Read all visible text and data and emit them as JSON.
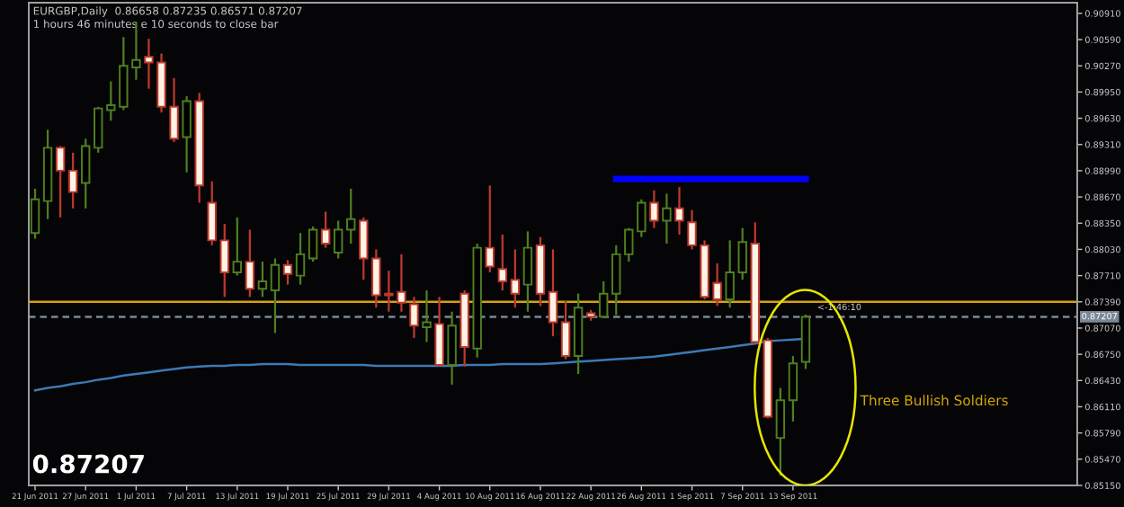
{
  "chart_data": {
    "type": "candlestick",
    "title": "EURGBP,Daily  0.86658 0.87235 0.86571 0.87207",
    "subtitle": "1 hours 46 minutes e 10 seconds to close bar",
    "categories": [
      "21 Jun 2011",
      null,
      null,
      null,
      "27 Jun 2011",
      null,
      null,
      null,
      "1 Jul 2011",
      null,
      null,
      null,
      "7 Jul 2011",
      null,
      null,
      null,
      "13 Jul 2011",
      null,
      null,
      null,
      "19 Jul 2011",
      null,
      null,
      null,
      "25 Jul 2011",
      null,
      null,
      null,
      "29 Jul 2011",
      null,
      null,
      null,
      "4 Aug 2011",
      null,
      null,
      null,
      "10 Aug 2011",
      null,
      null,
      null,
      "16 Aug 2011",
      null,
      null,
      null,
      "22 Aug 2011",
      null,
      null,
      null,
      "26 Aug 2011",
      null,
      null,
      null,
      "1 Sep 2011",
      null,
      null,
      null,
      "7 Sep 2011",
      null,
      null,
      null,
      "13 Sep 2011",
      null,
      null,
      null,
      null,
      null,
      null,
      null,
      null,
      null,
      null,
      null,
      null,
      null,
      null,
      null,
      null,
      null,
      null,
      null,
      null,
      null,
      null
    ],
    "ohlc": [
      [
        0.8823,
        0.8877,
        0.8816,
        0.8864
      ],
      [
        0.8862,
        0.8949,
        0.884,
        0.8927
      ],
      [
        0.8927,
        0.8929,
        0.8842,
        0.8899
      ],
      [
        0.8899,
        0.8921,
        0.8853,
        0.8873
      ],
      [
        0.8884,
        0.8938,
        0.8853,
        0.8929
      ],
      [
        0.8927,
        0.8977,
        0.8921,
        0.8975
      ],
      [
        0.8973,
        0.9008,
        0.896,
        0.8979
      ],
      [
        0.8977,
        0.9062,
        0.8973,
        0.9027
      ],
      [
        0.9025,
        0.9081,
        0.901,
        0.9034
      ],
      [
        0.9038,
        0.906,
        0.8999,
        0.9031
      ],
      [
        0.9031,
        0.9042,
        0.897,
        0.8977
      ],
      [
        0.8977,
        0.9012,
        0.8934,
        0.8938
      ],
      [
        0.894,
        0.899,
        0.8897,
        0.8984
      ],
      [
        0.8984,
        0.8994,
        0.886,
        0.8881
      ],
      [
        0.886,
        0.8886,
        0.8808,
        0.8814
      ],
      [
        0.8814,
        0.8834,
        0.8745,
        0.8775
      ],
      [
        0.8775,
        0.8842,
        0.8771,
        0.8788
      ],
      [
        0.8788,
        0.8827,
        0.8745,
        0.8755
      ],
      [
        0.8755,
        0.8788,
        0.8745,
        0.8764
      ],
      [
        0.8753,
        0.8792,
        0.8701,
        0.8784
      ],
      [
        0.8784,
        0.879,
        0.876,
        0.8773
      ],
      [
        0.8771,
        0.8823,
        0.876,
        0.8797
      ],
      [
        0.8792,
        0.8831,
        0.8788,
        0.8827
      ],
      [
        0.8827,
        0.8849,
        0.8805,
        0.881
      ],
      [
        0.8799,
        0.8838,
        0.8792,
        0.8827
      ],
      [
        0.8827,
        0.8877,
        0.881,
        0.884
      ],
      [
        0.8838,
        0.8842,
        0.8766,
        0.8792
      ],
      [
        0.8792,
        0.8803,
        0.8732,
        0.8747
      ],
      [
        0.8749,
        0.8777,
        0.8727,
        0.8747
      ],
      [
        0.8751,
        0.8797,
        0.8727,
        0.8738
      ],
      [
        0.8736,
        0.8745,
        0.8695,
        0.871
      ],
      [
        0.8708,
        0.8753,
        0.869,
        0.8714
      ],
      [
        0.8712,
        0.8745,
        0.866,
        0.8662
      ],
      [
        0.8662,
        0.8727,
        0.8638,
        0.871
      ],
      [
        0.8749,
        0.8753,
        0.866,
        0.8684
      ],
      [
        0.8682,
        0.881,
        0.8671,
        0.8805
      ],
      [
        0.8805,
        0.8881,
        0.8775,
        0.8782
      ],
      [
        0.8779,
        0.8821,
        0.8753,
        0.8764
      ],
      [
        0.8766,
        0.8803,
        0.8732,
        0.8749
      ],
      [
        0.876,
        0.8825,
        0.8727,
        0.8805
      ],
      [
        0.8808,
        0.8818,
        0.8734,
        0.8749
      ],
      [
        0.8751,
        0.8803,
        0.8697,
        0.8714
      ],
      [
        0.8714,
        0.874,
        0.8669,
        0.8673
      ],
      [
        0.8673,
        0.8749,
        0.8651,
        0.8732
      ],
      [
        0.8725,
        0.8729,
        0.8716,
        0.8721
      ],
      [
        0.8721,
        0.8764,
        0.8721,
        0.8749
      ],
      [
        0.8749,
        0.8808,
        0.8723,
        0.8797
      ],
      [
        0.8797,
        0.8829,
        0.8788,
        0.8827
      ],
      [
        0.8825,
        0.8864,
        0.8818,
        0.886
      ],
      [
        0.886,
        0.8875,
        0.8829,
        0.8838
      ],
      [
        0.8838,
        0.8871,
        0.881,
        0.8853
      ],
      [
        0.8853,
        0.8879,
        0.8821,
        0.8838
      ],
      [
        0.8836,
        0.8851,
        0.8803,
        0.8808
      ],
      [
        0.8808,
        0.8814,
        0.8742,
        0.8745
      ],
      [
        0.8762,
        0.8786,
        0.8734,
        0.8742
      ],
      [
        0.8742,
        0.8814,
        0.8732,
        0.8775
      ],
      [
        0.8775,
        0.8829,
        0.8766,
        0.8812
      ],
      [
        0.881,
        0.8836,
        0.8688,
        0.869
      ],
      [
        0.8692,
        0.8695,
        0.8597,
        0.8599
      ],
      [
        0.8573,
        0.8634,
        0.8527,
        0.8619
      ],
      [
        0.8619,
        0.8673,
        0.8593,
        0.8664
      ],
      [
        0.86658,
        0.87235,
        0.86571,
        0.87207
      ],
      null,
      null,
      null,
      null,
      null,
      null,
      null,
      null,
      null,
      null,
      null,
      null,
      null,
      null,
      null,
      null,
      null,
      null,
      null,
      null,
      null
    ],
    "colors": [
      "#4f7f1f",
      "#4f7f1f",
      "#fff3e6",
      "#fff3e6",
      "#4f7f1f",
      "#4f7f1f",
      "#4f7f1f",
      "#4f7f1f",
      "#4f7f1f",
      "#fff3e6",
      "#fff3e6",
      "#fff3e6",
      "#4f7f1f",
      "#fff3e6",
      "#fff3e6",
      "#fff3e6",
      "#4f7f1f",
      "#fff3e6",
      "#4f7f1f",
      "#4f7f1f",
      "#fff3e6",
      "#4f7f1f",
      "#4f7f1f",
      "#fff3e6",
      "#4f7f1f",
      "#4f7f1f",
      "#fff3e6",
      "#fff3e6",
      "#fff3e6",
      "#fff3e6",
      "#fff3e6",
      "#4f7f1f",
      "#fff3e6",
      "#4f7f1f",
      "#fff3e6",
      "#4f7f1f",
      "#fff3e6",
      "#fff3e6",
      "#fff3e6",
      "#4f7f1f",
      "#fff3e6",
      "#fff3e6",
      "#fff3e6",
      "#4f7f1f",
      "#fff3e6",
      "#4f7f1f",
      "#4f7f1f",
      "#4f7f1f",
      "#4f7f1f",
      "#fff3e6",
      "#4f7f1f",
      "#fff3e6",
      "#fff3e6",
      "#fff3e6",
      "#fff3e6",
      "#4f7f1f",
      "#4f7f1f",
      "#fff3e6",
      "#fff3e6",
      "#4f7f1f",
      "#4f7f1f",
      "#4f7f1f",
      null,
      null,
      null,
      null,
      null,
      null,
      null,
      null,
      null,
      null,
      null,
      null,
      null,
      null,
      null,
      null,
      null,
      null,
      null,
      null,
      null
    ],
    "series": [
      {
        "type": "line",
        "color": "#3c7ab5",
        "values": [
          0.8631,
          0.8634,
          0.8636,
          0.8639,
          0.8641,
          0.8644,
          0.8646,
          0.8649,
          0.8651,
          0.8653,
          0.8655,
          0.8657,
          0.8659,
          0.866,
          0.8661,
          0.8661,
          0.8662,
          0.8662,
          0.8663,
          0.8663,
          0.8663,
          0.8662,
          0.8662,
          0.8662,
          0.8662,
          0.8662,
          0.8662,
          0.8661,
          0.8661,
          0.8661,
          0.8661,
          0.8661,
          0.8661,
          0.8661,
          0.8662,
          0.8662,
          0.8662,
          0.8663,
          0.8663,
          0.8663,
          0.8663,
          0.8664,
          0.8665,
          0.8666,
          0.8667,
          0.8668,
          0.8669,
          0.867,
          0.8671,
          0.8672,
          0.8674,
          0.8676,
          0.8678,
          0.868,
          0.8682,
          0.8684,
          0.8686,
          0.8688,
          0.8691,
          0.8692,
          0.8693,
          0.8694,
          null,
          null,
          null,
          null,
          null,
          null,
          null,
          null,
          null,
          null,
          null,
          null,
          null,
          null,
          null,
          null,
          null,
          null,
          null,
          null,
          null
        ]
      },
      {
        "type": "line",
        "color": "#0000ff",
        "values": [
          null,
          null,
          null,
          null,
          null,
          null,
          null,
          null,
          null,
          null,
          null,
          null,
          null,
          null,
          null,
          null,
          null,
          null,
          null,
          null,
          null,
          null,
          null,
          null,
          null,
          null,
          null,
          null,
          null,
          null,
          null,
          null,
          null,
          null,
          null,
          null,
          null,
          null,
          null,
          null,
          null,
          null,
          null,
          null,
          null,
          null,
          0.8889,
          0.8889,
          0.8889,
          0.8889,
          0.8889,
          0.8889,
          0.8889,
          0.8889,
          0.8889,
          0.8889,
          0.8889,
          0.8889,
          0.8889,
          0.8889,
          0.8889,
          0.8889,
          null,
          null,
          null,
          null,
          null,
          null,
          null,
          null,
          null,
          null,
          null,
          null,
          null,
          null,
          null,
          null,
          null,
          null,
          null,
          null,
          null
        ]
      }
    ],
    "ref_lines": [
      {
        "axis": "y",
        "value": 0.8739,
        "label": null,
        "color": "#d4a017",
        "line_style": "solid"
      },
      {
        "axis": "y",
        "value": 0.87207,
        "label": "0.87207",
        "color": "#7a8896",
        "line_style": "dashed"
      }
    ],
    "annotations": [
      "0.87207",
      "Three Bullish Soldiers",
      {
        "text": "<-1:46:10",
        "y": 0.87207
      }
    ],
    "ylim": [
      0.8515,
      0.9104
    ],
    "yticks": [
      {
        "value": 0.8515,
        "label": "0.85150"
      },
      {
        "value": 0.8547,
        "label": "0.85470"
      },
      {
        "value": 0.8579,
        "label": "0.85790"
      },
      {
        "value": 0.8611,
        "label": "0.86110"
      },
      {
        "value": 0.8643,
        "label": "0.86430"
      },
      {
        "value": 0.8675,
        "label": "0.86750"
      },
      {
        "value": 0.8707,
        "label": "0.87070"
      },
      {
        "value": 0.8739,
        "label": "0.87390"
      },
      {
        "value": 0.8771,
        "label": "0.87710"
      },
      {
        "value": 0.8803,
        "label": "0.88030"
      },
      {
        "value": 0.8835,
        "label": "0.88350"
      },
      {
        "value": 0.8867,
        "label": "0.88670"
      },
      {
        "value": 0.8899,
        "label": "0.88990"
      },
      {
        "value": 0.8931,
        "label": "0.89310"
      },
      {
        "value": 0.8963,
        "label": "0.89630"
      },
      {
        "value": 0.8995,
        "label": "0.89950"
      },
      {
        "value": 0.9027,
        "label": "0.90270"
      },
      {
        "value": 0.9059,
        "label": "0.90590"
      },
      {
        "value": 0.9091,
        "label": "0.90910"
      }
    ]
  }
}
